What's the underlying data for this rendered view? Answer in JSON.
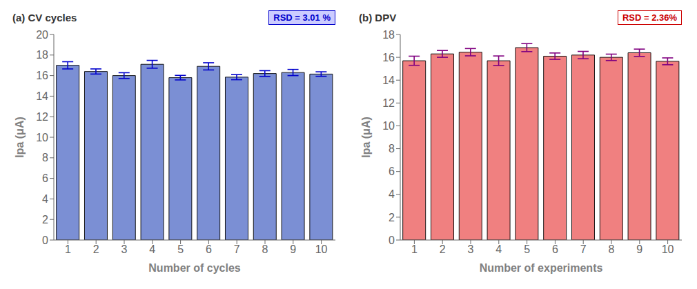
{
  "chart_data": [
    {
      "type": "bar",
      "title": "(a) CV cycles",
      "xlabel": "Number of cycles",
      "ylabel": "Ipa (μA)",
      "categories": [
        "1",
        "2",
        "3",
        "4",
        "5",
        "6",
        "7",
        "8",
        "9",
        "10"
      ],
      "values": [
        17.0,
        16.4,
        16.0,
        17.1,
        15.8,
        16.9,
        15.85,
        16.2,
        16.3,
        16.15
      ],
      "errors": [
        0.35,
        0.25,
        0.28,
        0.38,
        0.22,
        0.35,
        0.25,
        0.28,
        0.3,
        0.22
      ],
      "color": "#7B8FD4",
      "ylim": [
        0,
        20
      ],
      "yticks": [
        0,
        2,
        4,
        6,
        8,
        10,
        12,
        14,
        16,
        18,
        20
      ],
      "grid": false,
      "annotations": [
        {
          "text": "RSD = 3.01 %",
          "color": "#0000CC"
        }
      ]
    },
    {
      "type": "bar",
      "title": "(b) DPV",
      "xlabel": "Number of experiments",
      "ylabel": "Ipa (μA)",
      "categories": [
        "1",
        "2",
        "3",
        "4",
        "5",
        "6",
        "7",
        "8",
        "9",
        "10"
      ],
      "values": [
        15.7,
        16.3,
        16.45,
        15.7,
        16.85,
        16.1,
        16.2,
        16.0,
        16.4,
        15.65
      ],
      "errors": [
        0.4,
        0.3,
        0.32,
        0.42,
        0.35,
        0.28,
        0.32,
        0.28,
        0.32,
        0.3
      ],
      "color": "#F08080",
      "ylim": [
        0,
        18
      ],
      "yticks": [
        0,
        2,
        4,
        6,
        8,
        10,
        12,
        14,
        16,
        18
      ],
      "grid": false,
      "annotations": [
        {
          "text": "RSD = 2.36%",
          "color": "#CC0000"
        }
      ]
    }
  ]
}
